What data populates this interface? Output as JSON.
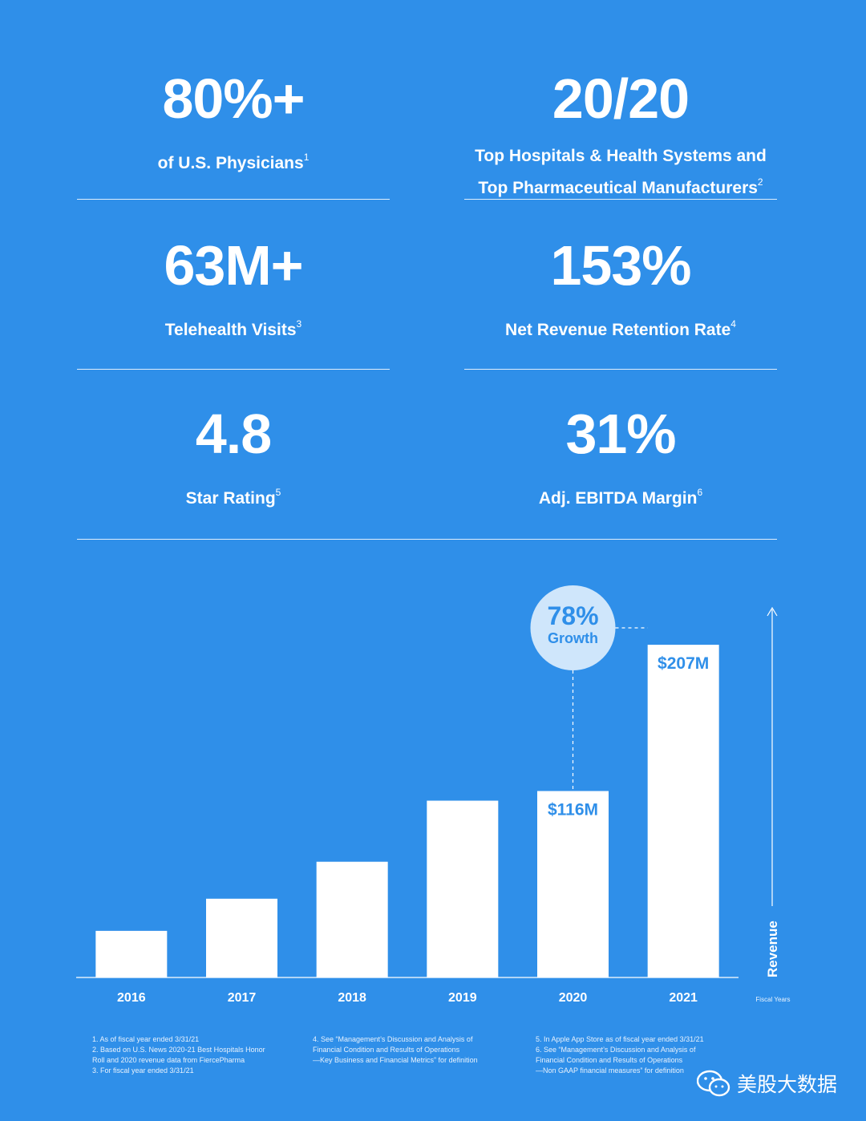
{
  "stats": [
    {
      "value": "80%+",
      "label": "of U.S. Physicians",
      "label2": "",
      "note": "1"
    },
    {
      "value": "20/20",
      "label": "Top Hospitals & Health Systems and",
      "label2": "Top Pharmaceutical Manufacturers",
      "note": "2"
    },
    {
      "value": "63M+",
      "label": "Telehealth Visits",
      "label2": "",
      "note": "3"
    },
    {
      "value": "153%",
      "label": "Net Revenue Retention Rate",
      "label2": "",
      "note": "4"
    },
    {
      "value": "4.8",
      "label": "Star Rating",
      "label2": "",
      "note": "5"
    },
    {
      "value": "31%",
      "label": "Adj. EBITDA Margin",
      "label2": "",
      "note": "6"
    }
  ],
  "chart_data": {
    "type": "bar",
    "categories": [
      "2016",
      "2017",
      "2018",
      "2019",
      "2020",
      "2021"
    ],
    "values": [
      29,
      49,
      72,
      110,
      116,
      207
    ],
    "data_labels": [
      "",
      "",
      "",
      "",
      "$116M",
      "$207M"
    ],
    "ylabel": "Revenue",
    "xlabel": "Fiscal Years",
    "ylim": [
      0,
      230
    ],
    "annotation": {
      "value": "78%",
      "text": "Growth"
    },
    "bar_color": "#ffffff",
    "label_color": "#2f8fe9",
    "bubble_color": "#cfe6fb",
    "grid": false
  },
  "footnotes": {
    "col1": [
      "1. As of fiscal year ended 3/31/21",
      "2. Based on U.S. News 2020-21 Best Hospitals Honor",
      "    Roll and 2020 revenue data from FiercePharma",
      "3. For fiscal year ended 3/31/21"
    ],
    "col2": [
      "4. See “Management’s Discussion and Analysis of",
      "    Financial Condition and Results of Operations",
      "    —Key Business and Financial Metrics” for definition"
    ],
    "col3": [
      "5. In Apple App Store as of fiscal year ended 3/31/21",
      "6. See “Management’s Discussion and Analysis of",
      "    Financial Condition and Results of Operations",
      "    —Non GAAP financial measures” for definition"
    ]
  },
  "watermark": {
    "text": "美股大数据",
    "icon": "wechat-icon"
  },
  "colors": {
    "background": "#2f8fe9",
    "foreground": "#ffffff"
  }
}
